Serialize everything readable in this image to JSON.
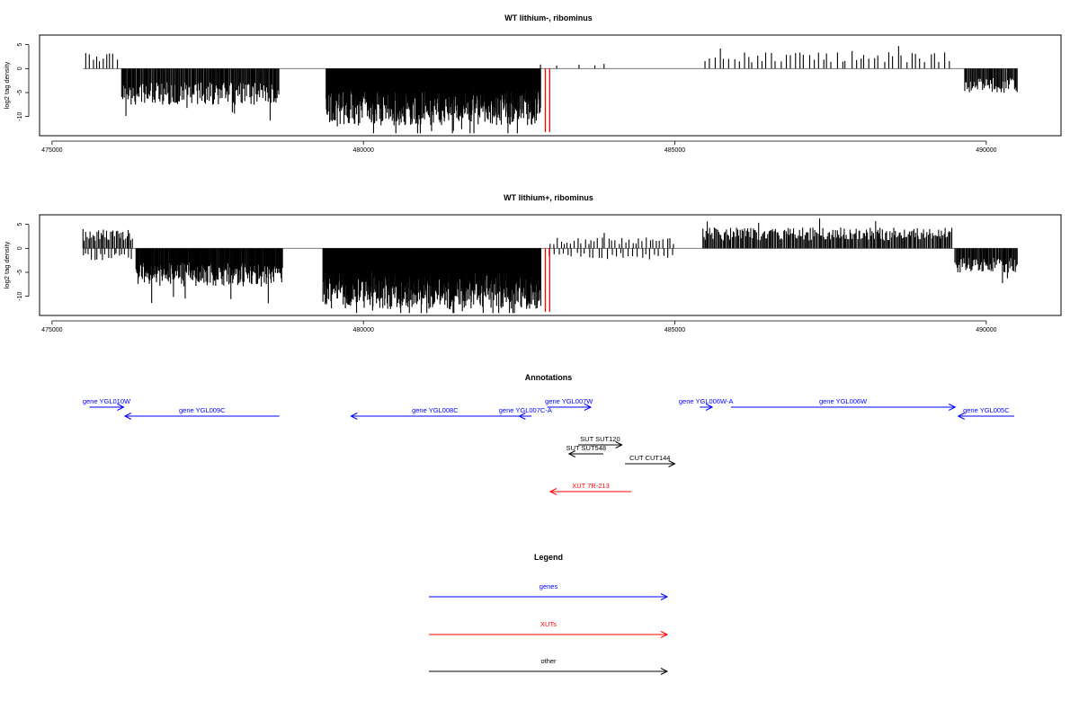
{
  "colors": {
    "bars": "#000000",
    "highlight": "#ff0000",
    "gene": "#0000ff",
    "xut": "#ff0000",
    "other": "#000000",
    "frame": "#000000"
  },
  "chart_data": [
    {
      "type": "bar",
      "title": "WT lithium-, ribominus",
      "ylabel": "log2 tag density",
      "xlim": [
        474800,
        491200
      ],
      "ylim": [
        -14,
        7
      ],
      "xticks": [
        475000,
        480000,
        485000,
        490000
      ],
      "xtick_labels": [
        "475000",
        "480000",
        "485000",
        "490000"
      ],
      "yticks": [
        5,
        0,
        -5,
        -10
      ],
      "ytick_labels": [
        "5",
        "0",
        "-5",
        "-10"
      ],
      "highlight_lines_x": [
        482920,
        482990
      ],
      "segments": [
        {
          "x0": 475550,
          "x1": 476050,
          "level": 2.5,
          "pol": 1,
          "step": 55
        },
        {
          "x0": 476120,
          "x1": 478650,
          "level": -5.2,
          "pol": -1,
          "step": 14
        },
        {
          "x0": 479400,
          "x1": 482850,
          "level": -8.2,
          "pol": -1,
          "step": 7
        },
        {
          "x0": 482900,
          "x1": 484000,
          "level": 0.8,
          "pol": 1,
          "step": 260
        },
        {
          "x0": 485500,
          "x1": 489400,
          "level": 2.4,
          "pol": 1,
          "step": 75
        },
        {
          "x0": 489650,
          "x1": 490500,
          "level": -3.5,
          "pol": -1,
          "step": 16
        }
      ]
    },
    {
      "type": "bar",
      "title": "WT lithium+, ribominus",
      "ylabel": "log2 tag density",
      "xlim": [
        474800,
        491200
      ],
      "ylim": [
        -14,
        7
      ],
      "xticks": [
        475000,
        480000,
        485000,
        490000
      ],
      "xtick_labels": [
        "475000",
        "480000",
        "485000",
        "490000"
      ],
      "yticks": [
        5,
        0,
        -5,
        -10
      ],
      "ytick_labels": [
        "5",
        "0",
        "-5",
        "-10"
      ],
      "highlight_lines_x": [
        482920,
        482990
      ],
      "segments": [
        {
          "x0": 475500,
          "x1": 476300,
          "level": 2.8,
          "pol": 1,
          "step": 22
        },
        {
          "x0": 475500,
          "x1": 476300,
          "level": -1.8,
          "pol": -1,
          "step": 45
        },
        {
          "x0": 476350,
          "x1": 478700,
          "level": -5.5,
          "pol": -1,
          "step": 10
        },
        {
          "x0": 479350,
          "x1": 482850,
          "level": -8.8,
          "pol": -1,
          "step": 6
        },
        {
          "x0": 483000,
          "x1": 485000,
          "level": 1.6,
          "pol": 1,
          "step": 55
        },
        {
          "x0": 483000,
          "x1": 485000,
          "level": -1.6,
          "pol": -1,
          "step": 70
        },
        {
          "x0": 485450,
          "x1": 489450,
          "level": 3.0,
          "pol": 1,
          "step": 18
        },
        {
          "x0": 489500,
          "x1": 490500,
          "level": -3.5,
          "pol": -1,
          "step": 14
        }
      ]
    }
  ],
  "annotations": {
    "title": "Annotations",
    "xlim": [
      474800,
      491200
    ],
    "features": [
      {
        "label": "gene YGL010W",
        "x0": 475600,
        "x1": 476150,
        "strand": "+",
        "kind": "gene",
        "row": 0
      },
      {
        "label": "gene YGL009C",
        "x0": 476170,
        "x1": 478650,
        "strand": "-",
        "kind": "gene",
        "row": 1
      },
      {
        "label": "gene YGL008C",
        "x0": 479800,
        "x1": 482500,
        "strand": "-",
        "kind": "gene",
        "row": 1
      },
      {
        "label": "gene YGL007C-A",
        "x0": 482500,
        "x1": 482700,
        "strand": "-",
        "kind": "gene",
        "row": 1
      },
      {
        "label": "gene YGL007W",
        "x0": 482950,
        "x1": 483650,
        "strand": "+",
        "kind": "gene",
        "row": 0
      },
      {
        "label": "gene YGL006W-A",
        "x0": 485400,
        "x1": 485600,
        "strand": "+",
        "kind": "gene",
        "row": 0
      },
      {
        "label": "gene YGL006W",
        "x0": 485900,
        "x1": 489500,
        "strand": "+",
        "kind": "gene",
        "row": 0
      },
      {
        "label": "gene YGL005C",
        "x0": 489550,
        "x1": 490450,
        "strand": "-",
        "kind": "gene",
        "row": 1
      },
      {
        "label": "SUT SUT120",
        "x0": 483450,
        "x1": 484150,
        "strand": "+",
        "kind": "other",
        "row": 2
      },
      {
        "label": "SUT SUT548",
        "x0": 483300,
        "x1": 483850,
        "strand": "-",
        "kind": "other",
        "row": 3
      },
      {
        "label": "CUT CUT144",
        "x0": 484200,
        "x1": 485000,
        "strand": "+",
        "kind": "other",
        "row": 4
      },
      {
        "label": "XUT 7R-213",
        "x0": 483000,
        "x1": 484300,
        "strand": "-",
        "kind": "xut",
        "row": 6
      }
    ]
  },
  "legend": {
    "title": "Legend",
    "items": [
      {
        "label": "genes",
        "kind": "gene"
      },
      {
        "label": "XUTs",
        "kind": "xut"
      },
      {
        "label": "other",
        "kind": "other"
      }
    ]
  }
}
